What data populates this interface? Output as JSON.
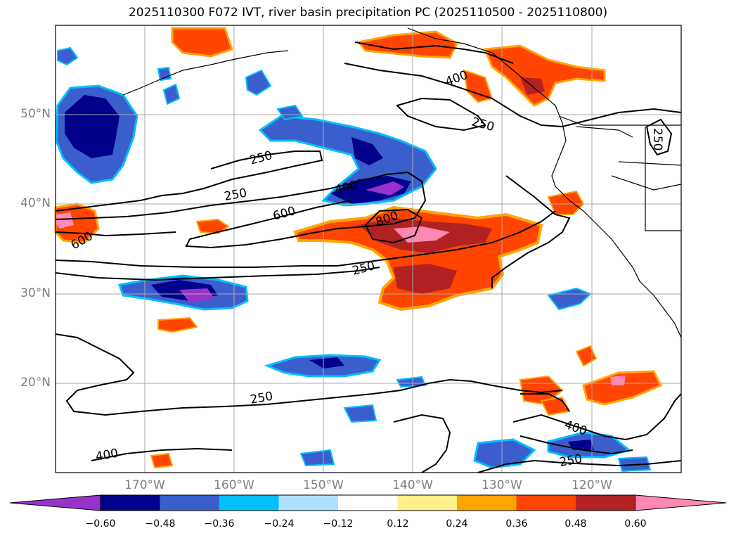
{
  "title": "2025110300 F072 IVT, river basin precipitation PC (2025110500 - 2025110800)",
  "lat_labels": [
    "50°N",
    "40°N",
    "30°N",
    "20°N"
  ],
  "lon_labels": [
    "170°W",
    "160°W",
    "150°W",
    "140°W",
    "130°W",
    "120°W"
  ],
  "contour_labels": [
    "400",
    "250",
    "250",
    "400",
    "250",
    "600",
    "600",
    "800",
    "250",
    "250",
    "400",
    "400",
    "250",
    "250"
  ],
  "colorbar": {
    "colors": [
      "#9932cc",
      "#00008b",
      "#3a5fcd",
      "#00bfff",
      "#b0e0ff",
      "#ffffff",
      "#fff08c",
      "#ffa500",
      "#ff4500",
      "#b22222",
      "#ff88b4"
    ],
    "tick_labels": [
      "−0.60",
      "−0.48",
      "−0.36",
      "−0.24",
      "−0.12",
      "0.12",
      "0.24",
      "0.36",
      "0.48",
      "0.60"
    ],
    "extend": "both"
  },
  "map": {
    "projection": "equirectangular",
    "lon_range": [
      -180,
      -110
    ],
    "lat_range": [
      10,
      60
    ],
    "grid": true,
    "contour_color": "#000000",
    "ivt_contour_levels": [
      250,
      400,
      600,
      800
    ]
  }
}
